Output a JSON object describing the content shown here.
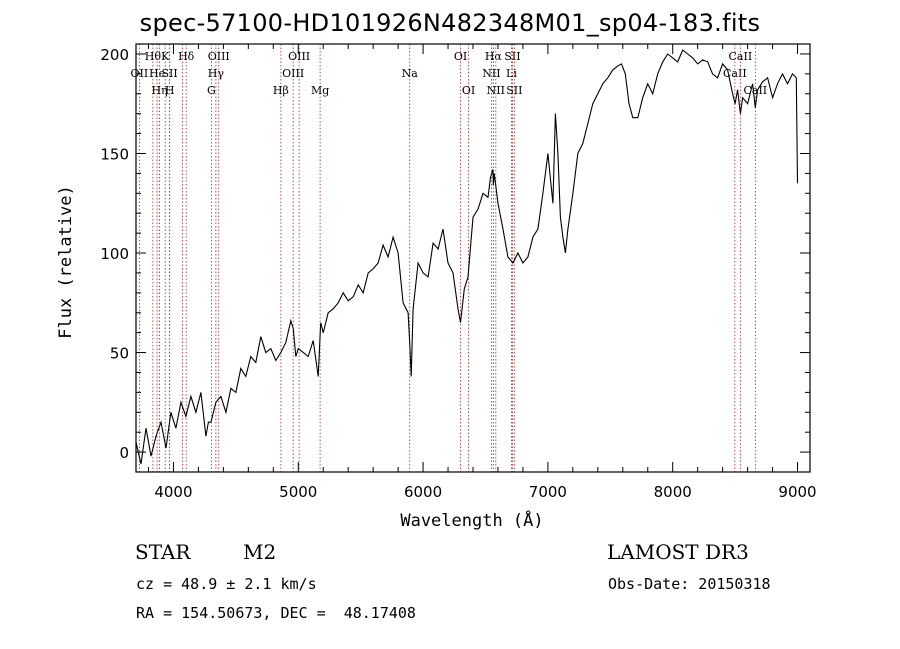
{
  "chart_data": {
    "type": "line",
    "title": "spec-57100-HD101926N482348M01_sp04-183.fits",
    "xlabel": "Wavelength (Å)",
    "ylabel": "Flux (relative)",
    "xlim": [
      3700,
      9100
    ],
    "ylim": [
      -10,
      205
    ],
    "xticks": [
      4000,
      5000,
      6000,
      7000,
      8000,
      9000
    ],
    "yticks": [
      0,
      50,
      100,
      150,
      200
    ],
    "series": [
      {
        "name": "flux",
        "x": [
          3700,
          3740,
          3780,
          3820,
          3860,
          3900,
          3940,
          3980,
          4020,
          4060,
          4100,
          4140,
          4180,
          4220,
          4260,
          4280,
          4300,
          4340,
          4380,
          4420,
          4460,
          4500,
          4540,
          4580,
          4620,
          4660,
          4700,
          4740,
          4780,
          4820,
          4860,
          4900,
          4940,
          4960,
          4980,
          5000,
          5040,
          5080,
          5120,
          5160,
          5180,
          5200,
          5240,
          5280,
          5320,
          5360,
          5400,
          5440,
          5480,
          5520,
          5560,
          5600,
          5640,
          5680,
          5720,
          5760,
          5800,
          5840,
          5880,
          5895,
          5905,
          5920,
          5960,
          6000,
          6040,
          6080,
          6120,
          6160,
          6200,
          6240,
          6280,
          6300,
          6330,
          6360,
          6400,
          6440,
          6480,
          6520,
          6540,
          6560,
          6563,
          6570,
          6600,
          6640,
          6680,
          6720,
          6760,
          6800,
          6840,
          6880,
          6920,
          6960,
          7000,
          7040,
          7060,
          7080,
          7100,
          7120,
          7140,
          7160,
          7200,
          7240,
          7280,
          7320,
          7360,
          7400,
          7440,
          7480,
          7520,
          7560,
          7590,
          7620,
          7650,
          7680,
          7720,
          7760,
          7800,
          7840,
          7880,
          7920,
          7960,
          8000,
          8040,
          8080,
          8120,
          8160,
          8200,
          8240,
          8280,
          8320,
          8360,
          8400,
          8440,
          8480,
          8500,
          8520,
          8542,
          8560,
          8600,
          8640,
          8662,
          8680,
          8720,
          8760,
          8800,
          8840,
          8880,
          8920,
          8960,
          8990,
          9000
        ],
        "values": [
          5,
          -6,
          12,
          -2,
          8,
          15,
          2,
          20,
          12,
          25,
          18,
          28,
          20,
          30,
          8,
          15,
          15,
          25,
          28,
          20,
          32,
          30,
          42,
          38,
          48,
          45,
          58,
          50,
          52,
          46,
          50,
          55,
          66,
          62,
          48,
          52,
          50,
          48,
          56,
          38,
          65,
          60,
          70,
          72,
          75,
          80,
          76,
          78,
          84,
          80,
          90,
          92,
          95,
          104,
          98,
          108,
          100,
          75,
          70,
          52,
          38,
          72,
          95,
          90,
          88,
          105,
          102,
          112,
          95,
          90,
          72,
          65,
          82,
          88,
          118,
          122,
          130,
          128,
          138,
          142,
          134,
          140,
          125,
          112,
          98,
          95,
          100,
          95,
          98,
          108,
          112,
          130,
          150,
          125,
          170,
          150,
          118,
          108,
          100,
          112,
          130,
          150,
          155,
          165,
          175,
          180,
          185,
          188,
          192,
          194,
          195,
          190,
          175,
          168,
          168,
          178,
          185,
          180,
          190,
          196,
          200,
          198,
          196,
          202,
          200,
          198,
          195,
          197,
          196,
          190,
          188,
          195,
          192,
          180,
          175,
          182,
          170,
          178,
          175,
          185,
          173,
          182,
          186,
          188,
          178,
          185,
          190,
          185,
          190,
          188,
          135
        ]
      }
    ],
    "lines": [
      {
        "wavelength": 3727,
        "row": 1,
        "label": "OII"
      },
      {
        "wavelength": 3835,
        "row": 0,
        "label": "Hθ"
      },
      {
        "wavelength": 3869,
        "row": 1,
        "label": "He"
      },
      {
        "wavelength": 3889,
        "row": 2,
        "label": "Hη"
      },
      {
        "wavelength": 3934,
        "row": 0,
        "label": "K"
      },
      {
        "wavelength": 3969,
        "row": 1,
        "label": "SII"
      },
      {
        "wavelength": 3970,
        "row": 2,
        "label": "H"
      },
      {
        "wavelength": 4102,
        "row": 0,
        "label": "Hδ"
      },
      {
        "wavelength": 4072,
        "row": 1,
        "label": ""
      },
      {
        "wavelength": 4340,
        "row": 1,
        "label": "Hγ"
      },
      {
        "wavelength": 4304,
        "row": 2,
        "label": "G"
      },
      {
        "wavelength": 4363,
        "row": 0,
        "label": "OIII"
      },
      {
        "wavelength": 4861,
        "row": 2,
        "label": "Hβ"
      },
      {
        "wavelength": 4959,
        "row": 1,
        "label": "OIII"
      },
      {
        "wavelength": 5007,
        "row": 0,
        "label": "OIII"
      },
      {
        "wavelength": 5175,
        "row": 2,
        "label": "Mg"
      },
      {
        "wavelength": 5893,
        "row": 1,
        "label": "Na"
      },
      {
        "wavelength": 6300,
        "row": 0,
        "label": "OI"
      },
      {
        "wavelength": 6364,
        "row": 2,
        "label": "OI"
      },
      {
        "wavelength": 6548,
        "row": 1,
        "label": "NII"
      },
      {
        "wavelength": 6563,
        "row": 0,
        "label": "Hα"
      },
      {
        "wavelength": 6583,
        "row": 2,
        "label": "NII"
      },
      {
        "wavelength": 6708,
        "row": 1,
        "label": "Li"
      },
      {
        "wavelength": 6716,
        "row": 0,
        "label": "SII"
      },
      {
        "wavelength": 6731,
        "row": 2,
        "label": "SII"
      },
      {
        "wavelength": 8498,
        "row": 1,
        "label": "CaII"
      },
      {
        "wavelength": 8542,
        "row": 0,
        "label": "CaII"
      },
      {
        "wavelength": 8662,
        "row": 2,
        "label": "CaII"
      }
    ]
  },
  "info": {
    "object_class": "STAR",
    "subclass": "M2",
    "survey": "LAMOST DR3",
    "cz": "cz = 48.9 ± 2.1 km/s",
    "obs_date": "Obs-Date: 20150318",
    "radec": "RA = 154.50673, DEC =  48.17408"
  },
  "colors": {
    "line_marker": "#b22222",
    "spectrum": "#000000",
    "axis": "#000000"
  }
}
